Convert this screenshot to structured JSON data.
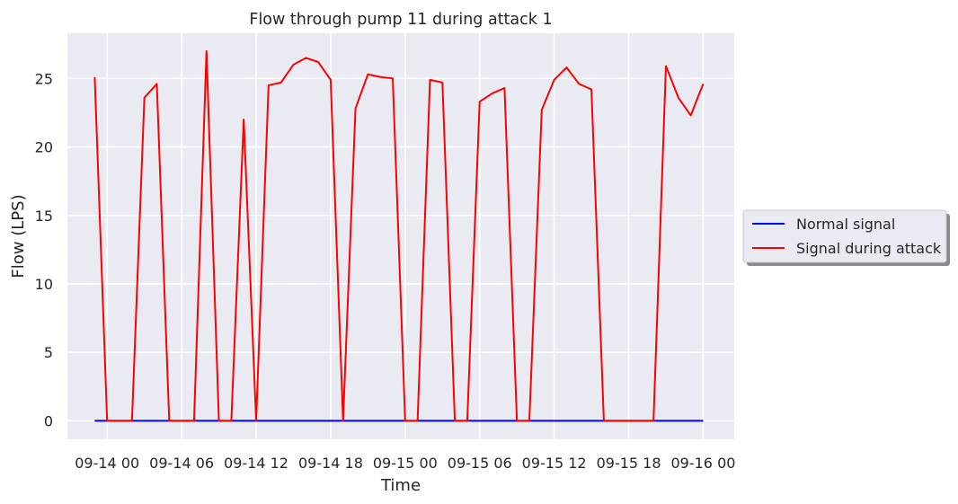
{
  "chart_data": {
    "type": "line",
    "title": "Flow through pump 11 during attack 1",
    "xlabel": "Time",
    "ylabel": "Flow (LPS)",
    "x_unit": "hours since 09-14 00:00",
    "xlim": [
      -3.2,
      50.5
    ],
    "ylim": [
      -1.35,
      28.3
    ],
    "grid": true,
    "xticks": [
      {
        "value": 0,
        "label": "09-14 00"
      },
      {
        "value": 6,
        "label": "09-14 06"
      },
      {
        "value": 12,
        "label": "09-14 12"
      },
      {
        "value": 18,
        "label": "09-14 18"
      },
      {
        "value": 24,
        "label": "09-15 00"
      },
      {
        "value": 30,
        "label": "09-15 06"
      },
      {
        "value": 36,
        "label": "09-15 12"
      },
      {
        "value": 42,
        "label": "09-15 18"
      },
      {
        "value": 48,
        "label": "09-16 00"
      }
    ],
    "yticks": [
      {
        "value": 0,
        "label": "0"
      },
      {
        "value": 5,
        "label": "5"
      },
      {
        "value": 10,
        "label": "10"
      },
      {
        "value": 15,
        "label": "15"
      },
      {
        "value": 20,
        "label": "20"
      },
      {
        "value": 25,
        "label": "25"
      }
    ],
    "legend_position": "center-right, outside plot",
    "series": [
      {
        "name": "Normal signal",
        "color": "#0000ff",
        "x": [
          -1,
          48
        ],
        "y": [
          0,
          0
        ]
      },
      {
        "name": "Signal during attack",
        "color": "#ff0000",
        "x": [
          -1,
          0,
          1,
          2,
          3,
          4,
          5,
          6,
          7,
          8,
          9,
          10,
          11,
          12,
          13,
          14,
          15,
          16,
          17,
          18,
          19,
          20,
          21,
          22,
          23,
          24,
          25,
          26,
          27,
          28,
          29,
          30,
          31,
          32,
          33,
          34,
          35,
          36,
          37,
          38,
          39,
          40,
          41,
          42,
          43,
          44,
          45,
          46,
          47,
          48
        ],
        "y": [
          25.1,
          0,
          0,
          0,
          23.6,
          24.6,
          0,
          0,
          0,
          27.0,
          0,
          0,
          22.0,
          0,
          24.5,
          24.7,
          26.0,
          26.5,
          26.2,
          24.9,
          0,
          22.8,
          25.3,
          25.1,
          25.0,
          0,
          0,
          24.9,
          24.7,
          0,
          0,
          23.3,
          23.9,
          24.3,
          0,
          0,
          22.7,
          24.9,
          25.8,
          24.6,
          24.2,
          0,
          0,
          0,
          0,
          0,
          25.9,
          23.6,
          22.3,
          24.6
        ]
      }
    ]
  }
}
